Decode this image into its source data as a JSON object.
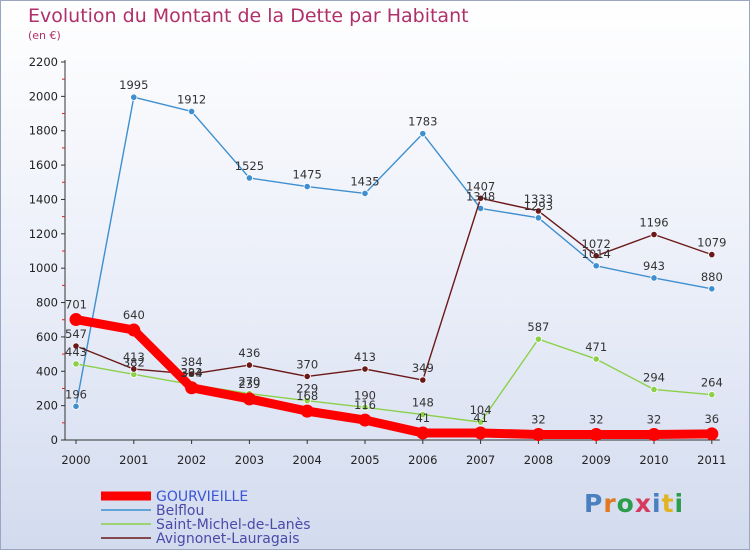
{
  "title": "Evolution du Montant de la Dette par Habitant",
  "unit_label": "(en €)",
  "logo": {
    "text": "Proxiti",
    "colors": [
      "#4a7fc0",
      "#e07a22",
      "#2c9d4a",
      "#d63a5e",
      "#4a7fc0",
      "#e0b422",
      "#2c9d4a"
    ]
  },
  "chart_data": {
    "type": "line",
    "categories": [
      "2000",
      "2001",
      "2002",
      "2003",
      "2004",
      "2005",
      "2006",
      "2007",
      "2008",
      "2009",
      "2010",
      "2011"
    ],
    "ylim": [
      0,
      2200
    ],
    "yticks": [
      0,
      200,
      400,
      600,
      800,
      1000,
      1200,
      1400,
      1600,
      1800,
      2000,
      2200
    ],
    "grid": false,
    "legend_position": "bottom-left",
    "series": [
      {
        "name": "GOURVIEILLE",
        "color": "#ff0000",
        "values": [
          701,
          640,
          304,
          239,
          168,
          116,
          41,
          41,
          32,
          32,
          32,
          36
        ]
      },
      {
        "name": "Belflou",
        "color": "#3f8fcf",
        "values": [
          196,
          1995,
          1912,
          1525,
          1475,
          1435,
          1783,
          1348,
          1293,
          1014,
          943,
          880
        ]
      },
      {
        "name": "Saint-Michel-de-Lanès",
        "color": "#8cd04a",
        "values": [
          443,
          382,
          323,
          270,
          229,
          190,
          148,
          104,
          587,
          471,
          294,
          264
        ]
      },
      {
        "name": "Avignonet-Lauragais",
        "color": "#6b1818",
        "values": [
          547,
          413,
          384,
          436,
          370,
          413,
          349,
          1407,
          1333,
          1072,
          1196,
          1079
        ]
      }
    ]
  }
}
